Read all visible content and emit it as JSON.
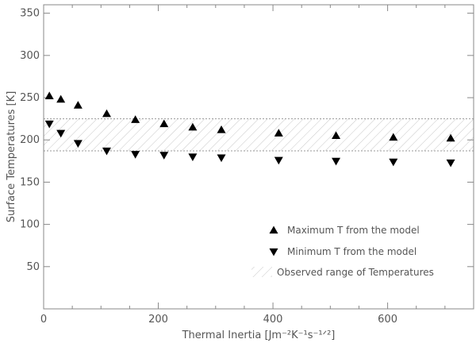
{
  "chart_data": {
    "type": "scatter",
    "xlabel": "Thermal Inertia [Jm⁻²K⁻¹s⁻¹ᐟ²]",
    "ylabel": "Surface Temperatures [K]",
    "xlim": [
      0,
      750
    ],
    "ylim": [
      0,
      360
    ],
    "x_ticks": [
      0,
      200,
      400,
      600
    ],
    "y_ticks": [
      50,
      100,
      150,
      200,
      250,
      300,
      350
    ],
    "legend_position": "bottom-right",
    "observed_range": {
      "name": "Observed range of Temperatures",
      "low": 187,
      "high": 225
    },
    "series": [
      {
        "name": "Maximum T from the model",
        "marker": "triangle-up",
        "x": [
          10,
          30,
          60,
          110,
          160,
          210,
          260,
          310,
          410,
          510,
          610,
          710
        ],
        "y": [
          252,
          248,
          241,
          231,
          224,
          219,
          215,
          212,
          208,
          205,
          203,
          202
        ]
      },
      {
        "name": "Minimum T from the model",
        "marker": "triangle-down",
        "x": [
          10,
          30,
          60,
          110,
          160,
          210,
          260,
          310,
          410,
          510,
          610,
          710
        ],
        "y": [
          219,
          208,
          196,
          187,
          183,
          182,
          180,
          179,
          176,
          175,
          174,
          173
        ]
      }
    ]
  }
}
